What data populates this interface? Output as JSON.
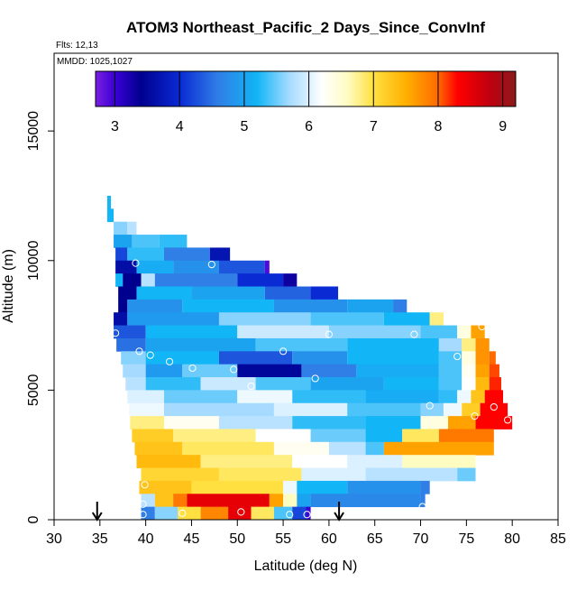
{
  "chart_data": {
    "type": "heatmap",
    "title": "ATOM3 Northeast_Pacific_2 Days_Since_ConvInf",
    "subtitle_flights": "Flts: 12,13",
    "subtitle_dates": "MMDD: 1025,1027",
    "xlabel": "Latitude (deg N)",
    "ylabel": "Altitude (m)",
    "xlim": [
      30,
      85
    ],
    "ylim": [
      0,
      18000
    ],
    "x_ticks": [
      30,
      35,
      40,
      45,
      50,
      55,
      60,
      65,
      70,
      75,
      80,
      85
    ],
    "y_ticks": [
      0,
      5000,
      10000,
      15000
    ],
    "colorbar": {
      "range": [
        2.7,
        9.2
      ],
      "ticks": [
        3,
        4,
        5,
        6,
        7,
        8,
        9
      ],
      "stops": [
        {
          "v": 2.7,
          "c": "#7b1fe0"
        },
        {
          "v": 3.0,
          "c": "#3a00d6"
        },
        {
          "v": 3.4,
          "c": "#00008f"
        },
        {
          "v": 4.0,
          "c": "#0a2ad4"
        },
        {
          "v": 4.6,
          "c": "#2f7fe6"
        },
        {
          "v": 5.2,
          "c": "#12b5f5"
        },
        {
          "v": 5.7,
          "c": "#a6dbff"
        },
        {
          "v": 6.2,
          "c": "#ffffff"
        },
        {
          "v": 6.6,
          "c": "#fffcc2"
        },
        {
          "v": 7.0,
          "c": "#ffe040"
        },
        {
          "v": 7.5,
          "c": "#ffb000"
        },
        {
          "v": 8.0,
          "c": "#ff6a00"
        },
        {
          "v": 8.3,
          "c": "#ff0000"
        },
        {
          "v": 8.8,
          "c": "#c00010"
        },
        {
          "v": 9.2,
          "c": "#8b1a1a"
        }
      ]
    },
    "layers": [
      {
        "alt": 12250,
        "segs": [
          [
            35.8,
            36.2,
            5.2
          ]
        ]
      },
      {
        "alt": 11750,
        "segs": [
          [
            35.8,
            36.5,
            5.2
          ]
        ]
      },
      {
        "alt": 11250,
        "segs": [
          [
            36.5,
            38.0,
            5.6
          ],
          [
            38.0,
            39.0,
            5.8
          ]
        ]
      },
      {
        "alt": 10750,
        "segs": [
          [
            36.5,
            38.5,
            5.0
          ],
          [
            38.5,
            41.5,
            5.4
          ],
          [
            41.5,
            44.5,
            5.3
          ]
        ]
      },
      {
        "alt": 10250,
        "segs": [
          [
            36.7,
            38.0,
            4.2
          ],
          [
            38.0,
            42.0,
            5.3
          ],
          [
            42.0,
            47.0,
            4.6
          ],
          [
            47.0,
            49.2,
            3.7
          ]
        ]
      },
      {
        "alt": 9750,
        "segs": [
          [
            36.7,
            39.0,
            3.6
          ],
          [
            39.0,
            43.0,
            5.1
          ],
          [
            43.0,
            48.0,
            4.8
          ],
          [
            48.0,
            53.0,
            4.3
          ],
          [
            53.0,
            53.5,
            2.9
          ]
        ]
      },
      {
        "alt": 9250,
        "segs": [
          [
            36.7,
            37.5,
            5.2
          ],
          [
            37.5,
            39.5,
            3.4
          ],
          [
            39.5,
            41.0,
            5.8
          ],
          [
            41.0,
            50.0,
            4.6
          ],
          [
            50.0,
            55.0,
            4.0
          ],
          [
            55.0,
            56.5,
            3.3
          ]
        ]
      },
      {
        "alt": 8750,
        "segs": [
          [
            37.0,
            39.0,
            3.4
          ],
          [
            39.0,
            45.0,
            5.2
          ],
          [
            45.0,
            53.0,
            5.0
          ],
          [
            53.0,
            58.0,
            4.4
          ],
          [
            58.0,
            61.0,
            4.0
          ]
        ]
      },
      {
        "alt": 8250,
        "segs": [
          [
            37.0,
            38.0,
            3.4
          ],
          [
            38.0,
            44.0,
            4.8
          ],
          [
            44.0,
            54.0,
            5.2
          ],
          [
            54.0,
            62.0,
            4.8
          ],
          [
            62.0,
            67.0,
            5.0
          ],
          [
            67.0,
            68.5,
            4.6
          ]
        ]
      },
      {
        "alt": 7750,
        "segs": [
          [
            36.5,
            38.0,
            3.6
          ],
          [
            38.0,
            48.0,
            4.9
          ],
          [
            48.0,
            58.0,
            5.6
          ],
          [
            58.0,
            66.0,
            5.4
          ],
          [
            66.0,
            71.0,
            5.2
          ],
          [
            71.0,
            72.5,
            6.8
          ]
        ]
      },
      {
        "alt": 7250,
        "segs": [
          [
            36.5,
            40.0,
            4.3
          ],
          [
            40.0,
            50.0,
            5.2
          ],
          [
            50.0,
            60.0,
            5.9
          ],
          [
            60.0,
            70.0,
            5.6
          ],
          [
            70.0,
            74.0,
            5.4
          ],
          [
            74.0,
            75.5,
            6.4
          ],
          [
            75.5,
            77.0,
            7.6
          ]
        ]
      },
      {
        "alt": 6750,
        "segs": [
          [
            36.8,
            40.0,
            4.5
          ],
          [
            40.0,
            52.0,
            5.0
          ],
          [
            52.0,
            62.0,
            5.4
          ],
          [
            62.0,
            72.0,
            5.2
          ],
          [
            72.0,
            74.5,
            5.7
          ],
          [
            74.5,
            76.0,
            6.8
          ],
          [
            76.0,
            77.5,
            7.7
          ]
        ]
      },
      {
        "alt": 6250,
        "segs": [
          [
            37.3,
            40.0,
            5.6
          ],
          [
            40.0,
            48.0,
            5.2
          ],
          [
            48.0,
            56.0,
            4.3
          ],
          [
            56.0,
            62.0,
            4.8
          ],
          [
            62.0,
            72.0,
            5.2
          ],
          [
            72.0,
            74.5,
            5.4
          ],
          [
            74.5,
            76.0,
            6.4
          ],
          [
            76.0,
            77.5,
            7.7
          ],
          [
            77.5,
            78.2,
            8.0
          ]
        ]
      },
      {
        "alt": 5750,
        "segs": [
          [
            37.5,
            40.0,
            5.7
          ],
          [
            40.0,
            44.0,
            4.9
          ],
          [
            44.0,
            50.0,
            5.5
          ],
          [
            50.0,
            57.0,
            3.5
          ],
          [
            57.0,
            63.0,
            4.6
          ],
          [
            63.0,
            72.0,
            5.1
          ],
          [
            72.0,
            74.5,
            5.4
          ],
          [
            74.5,
            76.0,
            6.3
          ],
          [
            76.0,
            77.5,
            7.6
          ],
          [
            77.5,
            78.6,
            8.1
          ]
        ]
      },
      {
        "alt": 5250,
        "segs": [
          [
            37.8,
            40.0,
            5.8
          ],
          [
            40.0,
            46.0,
            5.3
          ],
          [
            46.0,
            52.0,
            5.9
          ],
          [
            52.0,
            58.0,
            5.4
          ],
          [
            58.0,
            66.0,
            5.0
          ],
          [
            66.0,
            72.0,
            5.2
          ],
          [
            72.0,
            74.5,
            5.4
          ],
          [
            74.5,
            76.0,
            6.2
          ],
          [
            76.0,
            77.5,
            7.4
          ],
          [
            77.5,
            78.8,
            8.2
          ]
        ]
      },
      {
        "alt": 4750,
        "segs": [
          [
            38.0,
            42.0,
            6.0
          ],
          [
            42.0,
            50.0,
            5.5
          ],
          [
            50.0,
            56.0,
            6.1
          ],
          [
            56.0,
            64.0,
            5.3
          ],
          [
            64.0,
            72.0,
            5.1
          ],
          [
            72.0,
            74.0,
            5.3
          ],
          [
            74.0,
            75.5,
            6.1
          ],
          [
            75.5,
            77.0,
            7.3
          ],
          [
            77.0,
            79.0,
            8.3
          ]
        ]
      },
      {
        "alt": 4250,
        "segs": [
          [
            38.2,
            42.0,
            6.1
          ],
          [
            42.0,
            54.0,
            5.7
          ],
          [
            54.0,
            62.0,
            6.0
          ],
          [
            62.0,
            70.0,
            5.4
          ],
          [
            70.0,
            72.5,
            5.6
          ],
          [
            72.5,
            74.5,
            6.1
          ],
          [
            74.5,
            76.5,
            7.2
          ],
          [
            76.5,
            79.5,
            8.3
          ]
        ]
      },
      {
        "alt": 3750,
        "segs": [
          [
            38.3,
            42.0,
            6.8
          ],
          [
            42.0,
            48.0,
            6.3
          ],
          [
            48.0,
            56.0,
            5.8
          ],
          [
            56.0,
            64.0,
            5.3
          ],
          [
            64.0,
            70.0,
            5.2
          ],
          [
            70.0,
            73.0,
            6.4
          ],
          [
            73.0,
            76.0,
            7.6
          ],
          [
            76.0,
            80.0,
            8.3
          ]
        ]
      },
      {
        "alt": 3250,
        "segs": [
          [
            38.5,
            43.0,
            7.2
          ],
          [
            43.0,
            52.0,
            6.8
          ],
          [
            52.0,
            58.0,
            6.2
          ],
          [
            58.0,
            64.0,
            5.5
          ],
          [
            64.0,
            68.0,
            5.2
          ],
          [
            68.0,
            72.0,
            6.9
          ],
          [
            72.0,
            78.0,
            7.9
          ]
        ]
      },
      {
        "alt": 2750,
        "segs": [
          [
            38.8,
            44.0,
            7.3
          ],
          [
            44.0,
            54.0,
            6.9
          ],
          [
            54.0,
            60.0,
            6.3
          ],
          [
            60.0,
            64.0,
            5.8
          ],
          [
            64.0,
            66.0,
            5.4
          ],
          [
            66.0,
            78.0,
            7.6
          ]
        ]
      },
      {
        "alt": 2250,
        "segs": [
          [
            39.0,
            46.0,
            7.4
          ],
          [
            46.0,
            56.0,
            6.8
          ],
          [
            56.0,
            62.0,
            6.2
          ],
          [
            62.0,
            68.0,
            6.0
          ],
          [
            68.0,
            76.0,
            6.6
          ]
        ]
      },
      {
        "alt": 1750,
        "segs": [
          [
            39.5,
            48.0,
            7.1
          ],
          [
            48.0,
            57.0,
            6.9
          ],
          [
            57.0,
            64.0,
            6.0
          ],
          [
            64.0,
            74.0,
            5.8
          ],
          [
            74.0,
            76.0,
            5.5
          ]
        ]
      },
      {
        "alt": 1250,
        "segs": [
          [
            39.3,
            45.0,
            7.3
          ],
          [
            45.0,
            55.0,
            7.0
          ],
          [
            55.0,
            56.5,
            6.1
          ],
          [
            56.5,
            62.0,
            5.2
          ],
          [
            62.0,
            70.0,
            4.8
          ],
          [
            70.0,
            71.0,
            4.6
          ]
        ]
      },
      {
        "alt": 750,
        "segs": [
          [
            39.5,
            41.0,
            5.8
          ],
          [
            41.0,
            43.0,
            7.3
          ],
          [
            43.0,
            44.5,
            7.9
          ],
          [
            44.5,
            53.5,
            8.5
          ],
          [
            53.5,
            55.0,
            7.6
          ],
          [
            55.0,
            56.5,
            6.6
          ],
          [
            56.5,
            58.0,
            5.0
          ],
          [
            58.0,
            70.0,
            4.7
          ],
          [
            70.0,
            70.5,
            4.6
          ]
        ]
      },
      {
        "alt": 250,
        "segs": [
          [
            39.5,
            41.0,
            4.6
          ],
          [
            41.0,
            43.5,
            5.6
          ],
          [
            43.5,
            46.0,
            7.0
          ],
          [
            46.0,
            49.0,
            7.8
          ],
          [
            49.0,
            51.5,
            8.5
          ],
          [
            51.5,
            54.0,
            6.9
          ],
          [
            54.0,
            56.0,
            5.4
          ],
          [
            56.0,
            57.5,
            4.2
          ],
          [
            57.5,
            58.0,
            3.0
          ]
        ]
      }
    ],
    "markers": [
      [
        53.0,
        10300
      ],
      [
        38.9,
        9900
      ],
      [
        47.2,
        9850
      ],
      [
        36.7,
        7200
      ],
      [
        60.0,
        7150
      ],
      [
        69.3,
        7150
      ],
      [
        76.7,
        7450
      ],
      [
        39.3,
        6500
      ],
      [
        40.5,
        6350
      ],
      [
        42.6,
        6100
      ],
      [
        55.0,
        6500
      ],
      [
        74.0,
        6300
      ],
      [
        45.1,
        5850
      ],
      [
        49.6,
        5800
      ],
      [
        58.5,
        5450
      ],
      [
        51.5,
        5150
      ],
      [
        71.0,
        4400
      ],
      [
        78.0,
        4350
      ],
      [
        75.9,
        4000
      ],
      [
        79.5,
        3850
      ],
      [
        39.9,
        1350
      ],
      [
        39.7,
        600
      ],
      [
        70.2,
        500
      ],
      [
        39.7,
        200
      ],
      [
        44.0,
        250
      ],
      [
        50.4,
        300
      ],
      [
        55.7,
        200
      ],
      [
        57.6,
        200
      ]
    ],
    "arrows": [
      34.7,
      61.1
    ],
    "grid": false,
    "legend_position": "top colorbar"
  }
}
